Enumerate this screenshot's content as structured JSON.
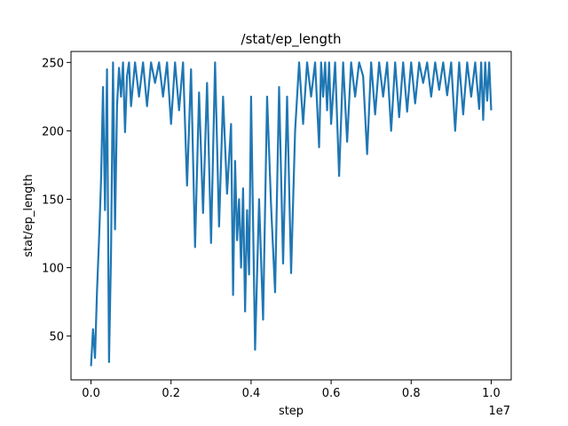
{
  "chart_data": {
    "type": "line",
    "title": "/stat/ep_length",
    "xlabel": "step",
    "ylabel": "stat/ep_length",
    "x_offset_label": "1e7",
    "xlim": [
      -0.05,
      1.05
    ],
    "ylim": [
      18,
      258
    ],
    "x_ticks": [
      0.0,
      0.2,
      0.4,
      0.6,
      0.8,
      1.0
    ],
    "x_tick_labels": [
      "0.0",
      "0.2",
      "0.4",
      "0.6",
      "0.8",
      "1.0"
    ],
    "y_ticks": [
      50,
      100,
      150,
      200,
      250
    ],
    "y_tick_labels": [
      "50",
      "100",
      "150",
      "200",
      "250"
    ],
    "grid": false,
    "legend": "none",
    "series": [
      {
        "color": "#1f77b4",
        "x": [
          0.0,
          0.005,
          0.01,
          0.015,
          0.02,
          0.025,
          0.03,
          0.035,
          0.04,
          0.045,
          0.05,
          0.055,
          0.06,
          0.065,
          0.07,
          0.075,
          0.08,
          0.085,
          0.09,
          0.095,
          0.1,
          0.11,
          0.12,
          0.13,
          0.14,
          0.15,
          0.16,
          0.17,
          0.18,
          0.19,
          0.2,
          0.21,
          0.22,
          0.23,
          0.24,
          0.25,
          0.26,
          0.27,
          0.28,
          0.29,
          0.3,
          0.31,
          0.32,
          0.33,
          0.34,
          0.35,
          0.355,
          0.36,
          0.365,
          0.37,
          0.375,
          0.38,
          0.385,
          0.39,
          0.395,
          0.4,
          0.41,
          0.42,
          0.43,
          0.44,
          0.45,
          0.46,
          0.47,
          0.48,
          0.49,
          0.5,
          0.51,
          0.52,
          0.53,
          0.54,
          0.55,
          0.56,
          0.57,
          0.575,
          0.58,
          0.585,
          0.59,
          0.595,
          0.6,
          0.61,
          0.62,
          0.63,
          0.64,
          0.65,
          0.66,
          0.67,
          0.68,
          0.69,
          0.7,
          0.71,
          0.72,
          0.73,
          0.74,
          0.75,
          0.76,
          0.77,
          0.78,
          0.79,
          0.8,
          0.81,
          0.82,
          0.83,
          0.84,
          0.85,
          0.86,
          0.87,
          0.88,
          0.89,
          0.9,
          0.91,
          0.92,
          0.93,
          0.94,
          0.95,
          0.96,
          0.97,
          0.975,
          0.98,
          0.985,
          0.99,
          0.995,
          1.0
        ],
        "y": [
          28,
          55,
          34,
          83,
          120,
          163,
          232,
          142,
          245,
          31,
          110,
          250,
          128,
          218,
          246,
          225,
          250,
          199,
          240,
          250,
          218,
          250,
          225,
          250,
          218,
          250,
          235,
          250,
          225,
          250,
          205,
          250,
          215,
          250,
          160,
          245,
          115,
          228,
          140,
          235,
          118,
          250,
          130,
          225,
          154,
          205,
          80,
          178,
          120,
          150,
          100,
          158,
          68,
          142,
          95,
          225,
          40,
          150,
          62,
          225,
          145,
          82,
          232,
          103,
          225,
          96,
          200,
          250,
          205,
          250,
          225,
          250,
          188,
          250,
          225,
          250,
          215,
          250,
          205,
          250,
          167,
          250,
          192,
          250,
          225,
          250,
          240,
          183,
          250,
          212,
          250,
          225,
          250,
          200,
          250,
          210,
          250,
          214,
          250,
          220,
          250,
          235,
          250,
          225,
          250,
          230,
          250,
          226,
          250,
          200,
          250,
          212,
          250,
          225,
          250,
          216,
          250,
          208,
          250,
          222,
          250,
          215
        ]
      }
    ]
  }
}
